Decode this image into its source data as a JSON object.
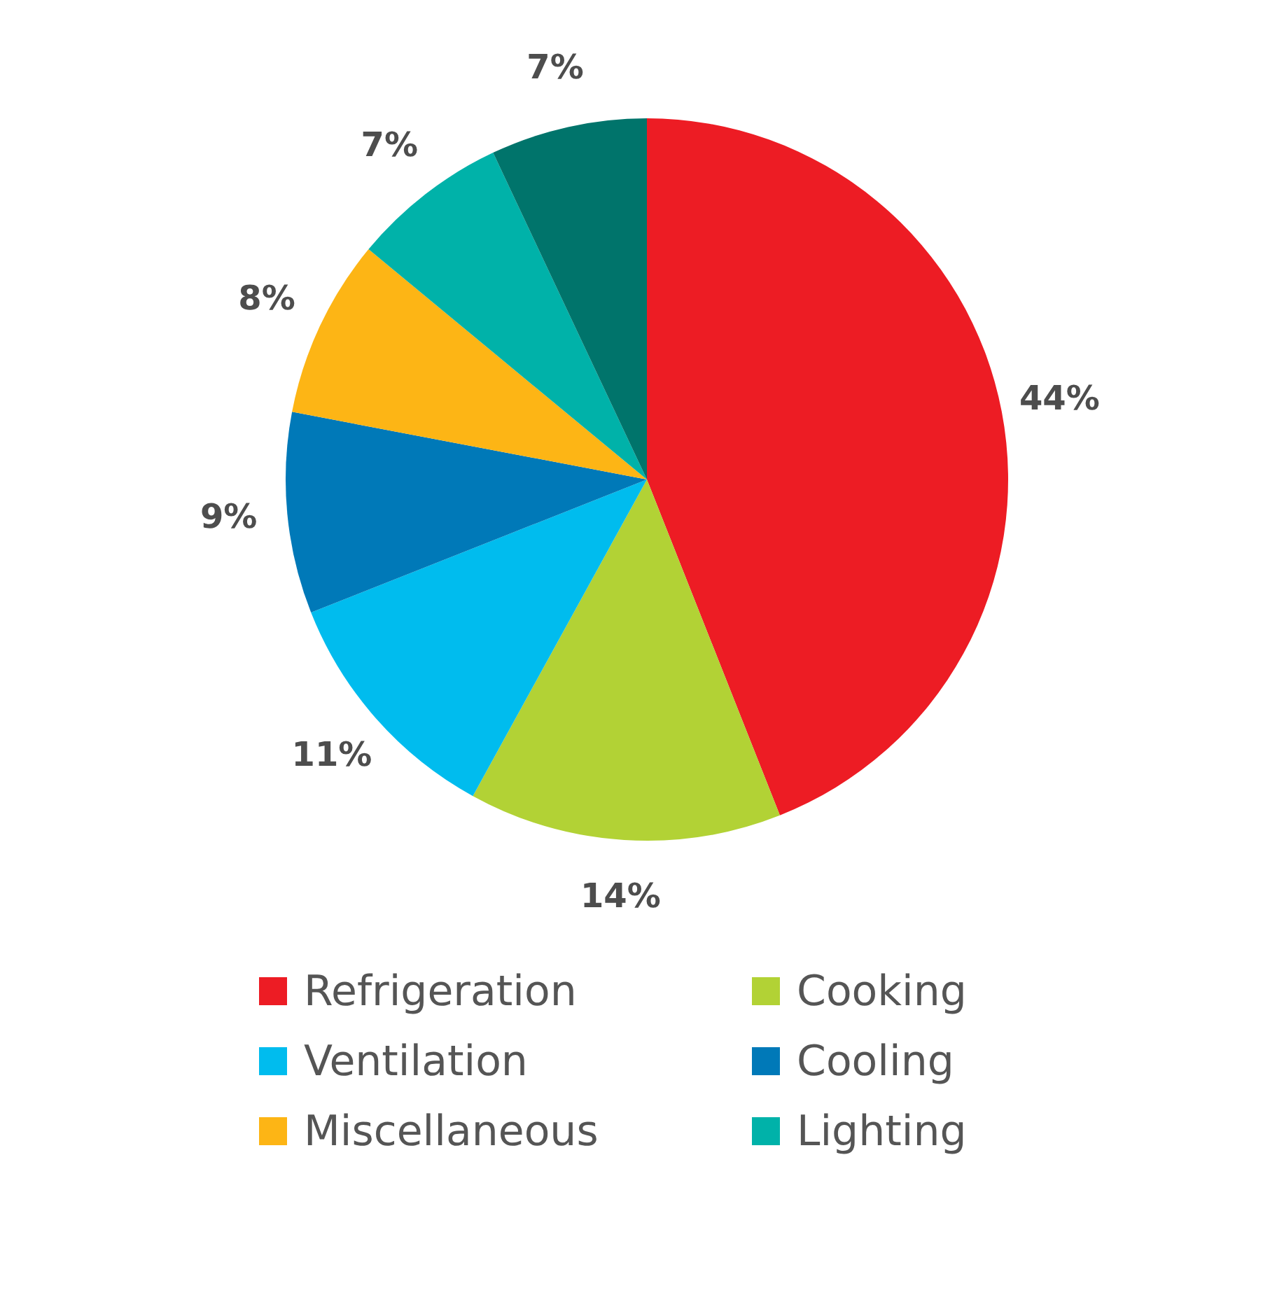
{
  "chart_data": {
    "type": "pie",
    "categories": [
      "Refrigeration",
      "Cooking",
      "Ventilation",
      "Cooling",
      "Miscellaneous",
      "Lighting",
      null
    ],
    "values": [
      44,
      14,
      11,
      9,
      8,
      7,
      7
    ],
    "colors": [
      "#ed1c24",
      "#b2d235",
      "#00bcee",
      "#0079b8",
      "#fdb515",
      "#00b2a9",
      "#00746b"
    ],
    "value_labels": [
      "44%",
      "14%",
      "11%",
      "9%",
      "8%",
      "7%",
      "7%"
    ],
    "legend": "bottom"
  }
}
